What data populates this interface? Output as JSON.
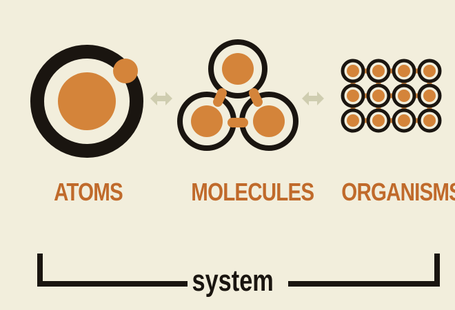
{
  "colors": {
    "background": "#f2eedc",
    "orange": "#d4843a",
    "dark": "#1a1510",
    "arrow": "#cfcdb0",
    "label": "#c06a2b"
  },
  "labels": {
    "atoms": "ATOMS",
    "molecules": "MOLECULES",
    "organisms": "ORGANISMS"
  },
  "bracket": {
    "label": "system"
  },
  "icons": {
    "atom": "atom-icon",
    "molecule": "molecule-icon",
    "organism": "organism-icon",
    "arrow": "double-arrow-icon"
  }
}
